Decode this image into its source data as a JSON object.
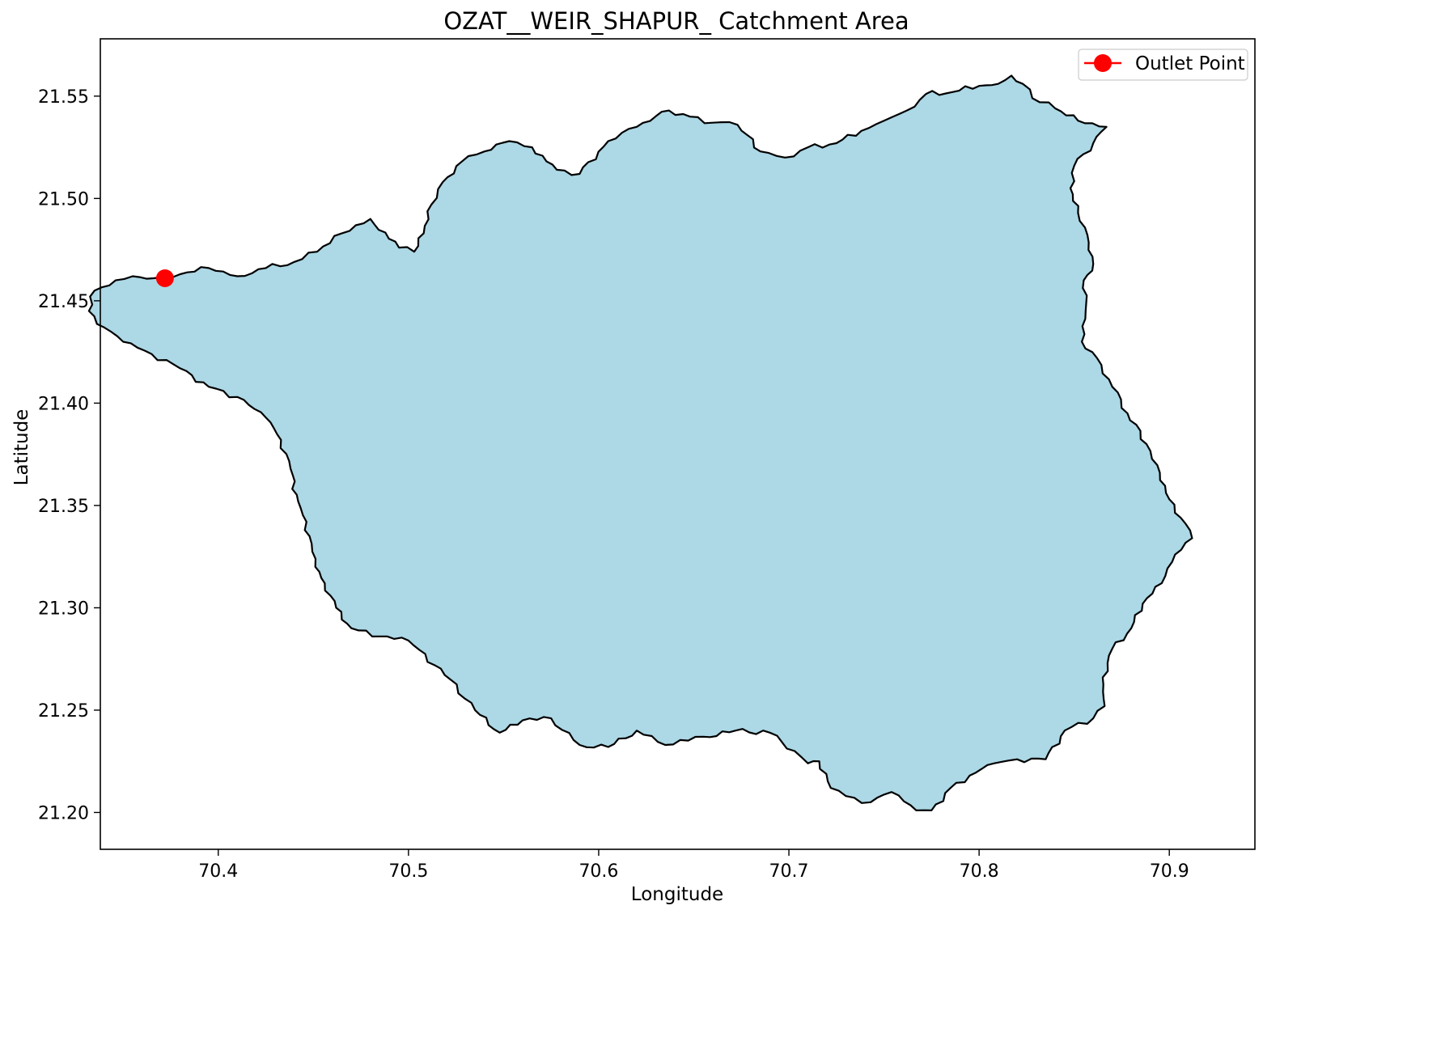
{
  "chart_data": {
    "type": "map",
    "title": "OZAT__WEIR_SHAPUR_ Catchment Area",
    "xlabel": "Longitude",
    "ylabel": "Latitude",
    "xlim": [
      70.338,
      70.945
    ],
    "ylim": [
      21.182,
      21.578
    ],
    "xticks": [
      70.4,
      70.5,
      70.6,
      70.7,
      70.8,
      70.9
    ],
    "yticks": [
      21.2,
      21.25,
      21.3,
      21.35,
      21.4,
      21.45,
      21.5,
      21.55
    ],
    "xtick_labels": [
      "70.4",
      "70.5",
      "70.6",
      "70.7",
      "70.8",
      "70.9"
    ],
    "ytick_labels": [
      "21.20",
      "21.25",
      "21.30",
      "21.35",
      "21.40",
      "21.45",
      "21.50",
      "21.55"
    ],
    "grid": false,
    "legend": {
      "placement": "upper-right",
      "entries": [
        {
          "label": "Outlet Point",
          "color": "#ff0000",
          "marker": "circle"
        }
      ]
    },
    "catchment": {
      "fill": "#add8e6",
      "stroke": "#000000",
      "boundary": [
        [
          70.366,
          21.461
        ],
        [
          70.38,
          21.463
        ],
        [
          70.395,
          21.466
        ],
        [
          70.41,
          21.462
        ],
        [
          70.425,
          21.466
        ],
        [
          70.44,
          21.469
        ],
        [
          70.452,
          21.474
        ],
        [
          70.465,
          21.483
        ],
        [
          70.48,
          21.49
        ],
        [
          70.495,
          21.476
        ],
        [
          70.503,
          21.474
        ],
        [
          70.508,
          21.483
        ],
        [
          70.512,
          21.497
        ],
        [
          70.518,
          21.508
        ],
        [
          70.528,
          21.518
        ],
        [
          70.54,
          21.523
        ],
        [
          70.553,
          21.528
        ],
        [
          70.565,
          21.525
        ],
        [
          70.578,
          21.514
        ],
        [
          70.59,
          21.512
        ],
        [
          70.605,
          21.528
        ],
        [
          70.62,
          21.535
        ],
        [
          70.637,
          21.543
        ],
        [
          70.648,
          21.54
        ],
        [
          70.66,
          21.537
        ],
        [
          70.673,
          21.536
        ],
        [
          70.685,
          21.523
        ],
        [
          70.698,
          21.52
        ],
        [
          70.71,
          21.525
        ],
        [
          70.725,
          21.527
        ],
        [
          70.738,
          21.533
        ],
        [
          70.75,
          21.538
        ],
        [
          70.762,
          21.543
        ],
        [
          70.772,
          21.551
        ],
        [
          70.786,
          21.552
        ],
        [
          70.8,
          21.555
        ],
        [
          70.81,
          21.556
        ],
        [
          70.817,
          21.56
        ],
        [
          70.823,
          21.556
        ],
        [
          70.828,
          21.549
        ],
        [
          70.84,
          21.544
        ],
        [
          70.852,
          21.538
        ],
        [
          70.867,
          21.535
        ],
        [
          70.86,
          21.527
        ],
        [
          70.85,
          21.516
        ],
        [
          70.848,
          21.505
        ],
        [
          70.852,
          21.493
        ],
        [
          70.857,
          21.482
        ],
        [
          70.86,
          21.468
        ],
        [
          70.855,
          21.46
        ],
        [
          70.856,
          21.445
        ],
        [
          70.854,
          21.43
        ],
        [
          70.862,
          21.422
        ],
        [
          70.87,
          21.408
        ],
        [
          70.878,
          21.395
        ],
        [
          70.888,
          21.38
        ],
        [
          70.895,
          21.366
        ],
        [
          70.9,
          21.353
        ],
        [
          70.906,
          21.344
        ],
        [
          70.912,
          21.334
        ],
        [
          70.903,
          21.326
        ],
        [
          70.896,
          21.312
        ],
        [
          70.886,
          21.302
        ],
        [
          70.88,
          21.29
        ],
        [
          70.87,
          21.28
        ],
        [
          70.865,
          21.266
        ],
        [
          70.866,
          21.252
        ],
        [
          70.86,
          21.246
        ],
        [
          70.845,
          21.24
        ],
        [
          70.835,
          21.226
        ],
        [
          70.82,
          21.226
        ],
        [
          70.808,
          21.224
        ],
        [
          70.795,
          21.218
        ],
        [
          70.785,
          21.212
        ],
        [
          70.775,
          21.201
        ],
        [
          70.767,
          21.201
        ],
        [
          70.754,
          21.21
        ],
        [
          70.743,
          21.205
        ],
        [
          70.73,
          21.208
        ],
        [
          70.722,
          21.212
        ],
        [
          70.716,
          21.225
        ],
        [
          70.71,
          21.224
        ],
        [
          70.703,
          21.23
        ],
        [
          70.69,
          21.239
        ],
        [
          70.672,
          21.24
        ],
        [
          70.655,
          21.237
        ],
        [
          70.635,
          21.233
        ],
        [
          70.62,
          21.24
        ],
        [
          70.605,
          21.232
        ],
        [
          70.59,
          21.233
        ],
        [
          70.575,
          21.246
        ],
        [
          70.56,
          21.245
        ],
        [
          70.548,
          21.239
        ],
        [
          70.535,
          21.25
        ],
        [
          70.522,
          21.265
        ],
        [
          70.5,
          21.284
        ],
        [
          70.485,
          21.286
        ],
        [
          70.47,
          21.29
        ],
        [
          70.462,
          21.3
        ],
        [
          70.456,
          21.312
        ],
        [
          70.451,
          21.32
        ],
        [
          70.448,
          21.335
        ],
        [
          70.442,
          21.352
        ],
        [
          70.438,
          21.368
        ],
        [
          70.433,
          21.382
        ],
        [
          70.425,
          21.393
        ],
        [
          70.41,
          21.403
        ],
        [
          70.395,
          21.408
        ],
        [
          70.38,
          21.417
        ],
        [
          70.365,
          21.424
        ],
        [
          70.35,
          21.43
        ],
        [
          70.34,
          21.437
        ],
        [
          70.332,
          21.445
        ],
        [
          70.335,
          21.455
        ],
        [
          70.346,
          21.46
        ],
        [
          70.355,
          21.462
        ]
      ]
    },
    "outlet_point": {
      "label": "Outlet Point",
      "lon": 70.372,
      "lat": 21.461,
      "color": "#ff0000"
    }
  }
}
